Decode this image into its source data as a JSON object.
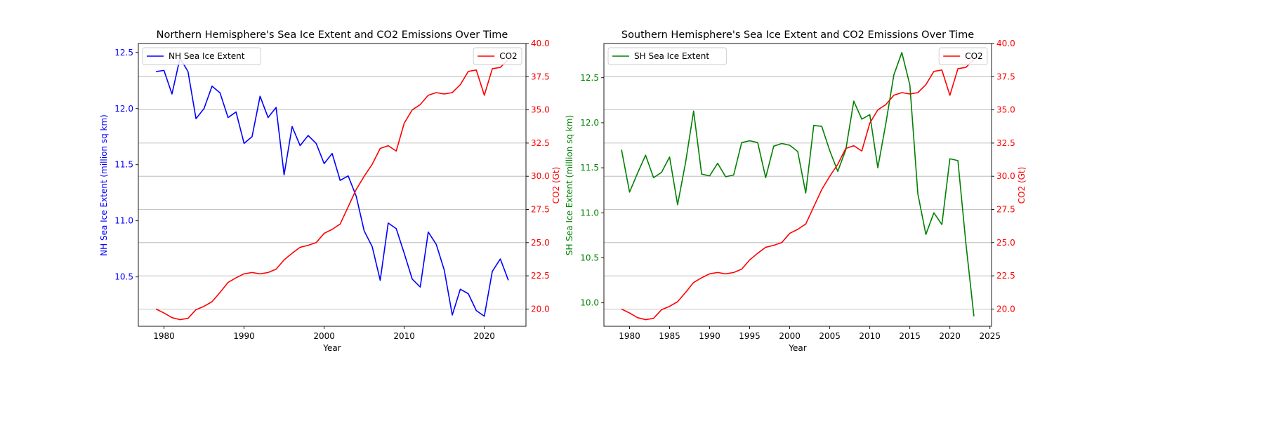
{
  "chart_data": [
    {
      "type": "line",
      "title": "Northern Hemisphere's Sea Ice Extent and CO2 Emissions Over Time",
      "xlabel": "Year",
      "ylabel_left": "NH Sea Ice Extent (million sq km)",
      "ylabel_right": "CO2 (Gt)",
      "xlim": [
        1976.8,
        2025.2
      ],
      "ylim_left": [
        10.06,
        12.58
      ],
      "ylim_right": [
        18.7,
        40.0
      ],
      "x_ticks": [
        1980,
        1990,
        2000,
        2010,
        2020
      ],
      "y_ticks_left": [
        10.5,
        11.0,
        11.5,
        12.0,
        12.5
      ],
      "y_ticks_right": [
        20.0,
        22.5,
        25.0,
        27.5,
        30.0,
        32.5,
        35.0,
        37.5,
        40.0
      ],
      "x_tick_labels": [
        "1980",
        "1990",
        "2000",
        "2010",
        "2020"
      ],
      "y_tick_labels_left": [
        "10.5",
        "11.0",
        "11.5",
        "12.0",
        "12.5"
      ],
      "y_tick_labels_right": [
        "20.0",
        "22.5",
        "25.0",
        "27.5",
        "30.0",
        "32.5",
        "35.0",
        "37.5",
        "40.0"
      ],
      "grid": "horizontal lines at right-axis ticks",
      "legend_left": {
        "position": "upper-left",
        "label": "NH Sea Ice Extent"
      },
      "legend_right": {
        "position": "upper-right",
        "label": "CO2"
      },
      "series": [
        {
          "name": "NH Sea Ice Extent",
          "axis": "left",
          "color": "#0000ff",
          "x": [
            1979,
            1980,
            1981,
            1982,
            1983,
            1984,
            1985,
            1986,
            1987,
            1988,
            1989,
            1990,
            1991,
            1992,
            1993,
            1994,
            1995,
            1996,
            1997,
            1998,
            1999,
            2000,
            2001,
            2002,
            2003,
            2004,
            2005,
            2006,
            2007,
            2008,
            2009,
            2010,
            2011,
            2012,
            2013,
            2014,
            2015,
            2016,
            2017,
            2018,
            2019,
            2020,
            2021,
            2022,
            2023
          ],
          "values": [
            12.33,
            12.34,
            12.13,
            12.45,
            12.33,
            11.91,
            12.0,
            12.2,
            12.14,
            11.92,
            11.97,
            11.69,
            11.75,
            12.11,
            11.92,
            12.01,
            11.41,
            11.84,
            11.67,
            11.76,
            11.69,
            11.51,
            11.6,
            11.36,
            11.4,
            11.22,
            10.91,
            10.77,
            10.47,
            10.98,
            10.93,
            10.71,
            10.48,
            10.41,
            10.9,
            10.79,
            10.56,
            10.16,
            10.39,
            10.35,
            10.2,
            10.15,
            10.55,
            10.66,
            10.47
          ]
        },
        {
          "name": "CO2",
          "axis": "right",
          "color": "#ff0000",
          "x": [
            1979,
            1980,
            1981,
            1982,
            1983,
            1984,
            1985,
            1986,
            1987,
            1988,
            1989,
            1990,
            1991,
            1992,
            1993,
            1994,
            1995,
            1996,
            1997,
            1998,
            1999,
            2000,
            2001,
            2002,
            2003,
            2004,
            2005,
            2006,
            2007,
            2008,
            2009,
            2010,
            2011,
            2012,
            2013,
            2014,
            2015,
            2016,
            2017,
            2018,
            2019,
            2020,
            2021,
            2022,
            2023
          ],
          "values": [
            20.0,
            19.7,
            19.35,
            19.2,
            19.3,
            19.95,
            20.2,
            20.55,
            21.25,
            22.0,
            22.35,
            22.65,
            22.75,
            22.65,
            22.75,
            23.0,
            23.7,
            24.2,
            24.65,
            24.8,
            25.0,
            25.7,
            26.0,
            26.4,
            27.7,
            29.0,
            30.0,
            30.9,
            32.1,
            32.3,
            31.9,
            34.0,
            35.0,
            35.4,
            36.1,
            36.3,
            36.2,
            36.3,
            36.9,
            37.9,
            38.0,
            36.1,
            38.1,
            38.2,
            38.8
          ]
        }
      ]
    },
    {
      "type": "line",
      "title": "Southern Hemisphere's Sea Ice Extent and CO2 Emissions Over Time",
      "xlabel": "Year",
      "ylabel_left": "SH Sea Ice Extent (million sq km)",
      "ylabel_right": "CO2 (Gt)",
      "xlim": [
        1976.8,
        2025.2
      ],
      "ylim_left": [
        9.74,
        12.88
      ],
      "ylim_right": [
        18.7,
        40.0
      ],
      "x_ticks": [
        1980,
        1985,
        1990,
        1995,
        2000,
        2005,
        2010,
        2015,
        2020,
        2025
      ],
      "y_ticks_left": [
        10.0,
        10.5,
        11.0,
        11.5,
        12.0,
        12.5
      ],
      "y_ticks_right": [
        20.0,
        22.5,
        25.0,
        27.5,
        30.0,
        32.5,
        35.0,
        37.5,
        40.0
      ],
      "x_tick_labels": [
        "1980",
        "1985",
        "1990",
        "1995",
        "2000",
        "2005",
        "2010",
        "2015",
        "2020",
        "2025"
      ],
      "y_tick_labels_left": [
        "10.0",
        "10.5",
        "11.0",
        "11.5",
        "12.0",
        "12.5"
      ],
      "y_tick_labels_right": [
        "20.0",
        "22.5",
        "25.0",
        "27.5",
        "30.0",
        "32.5",
        "35.0",
        "37.5",
        "40.0"
      ],
      "grid": "horizontal lines at right-axis ticks",
      "legend_left": {
        "position": "upper-left",
        "label": "SH Sea Ice Extent"
      },
      "legend_right": {
        "position": "upper-right",
        "label": "CO2"
      },
      "series": [
        {
          "name": "SH Sea Ice Extent",
          "axis": "left",
          "color": "#008000",
          "x": [
            1979,
            1980,
            1981,
            1982,
            1983,
            1984,
            1985,
            1986,
            1987,
            1988,
            1989,
            1990,
            1991,
            1992,
            1993,
            1994,
            1995,
            1996,
            1997,
            1998,
            1999,
            2000,
            2001,
            2002,
            2003,
            2004,
            2005,
            2006,
            2007,
            2008,
            2009,
            2010,
            2011,
            2012,
            2013,
            2014,
            2015,
            2016,
            2017,
            2018,
            2019,
            2020,
            2021,
            2022,
            2023
          ],
          "values": [
            11.7,
            11.23,
            11.44,
            11.64,
            11.39,
            11.45,
            11.62,
            11.09,
            11.56,
            12.13,
            11.43,
            11.41,
            11.55,
            11.4,
            11.42,
            11.78,
            11.8,
            11.78,
            11.39,
            11.74,
            11.77,
            11.75,
            11.68,
            11.22,
            11.97,
            11.96,
            11.69,
            11.46,
            11.7,
            12.24,
            12.04,
            12.09,
            11.5,
            11.99,
            12.53,
            12.78,
            12.42,
            11.21,
            10.76,
            11.0,
            10.87,
            11.6,
            11.58,
            10.66,
            9.85
          ]
        },
        {
          "name": "CO2",
          "axis": "right",
          "color": "#ff0000",
          "x": [
            1979,
            1980,
            1981,
            1982,
            1983,
            1984,
            1985,
            1986,
            1987,
            1988,
            1989,
            1990,
            1991,
            1992,
            1993,
            1994,
            1995,
            1996,
            1997,
            1998,
            1999,
            2000,
            2001,
            2002,
            2003,
            2004,
            2005,
            2006,
            2007,
            2008,
            2009,
            2010,
            2011,
            2012,
            2013,
            2014,
            2015,
            2016,
            2017,
            2018,
            2019,
            2020,
            2021,
            2022,
            2023
          ],
          "values": [
            20.0,
            19.7,
            19.35,
            19.2,
            19.3,
            19.95,
            20.2,
            20.55,
            21.25,
            22.0,
            22.35,
            22.65,
            22.75,
            22.65,
            22.75,
            23.0,
            23.7,
            24.2,
            24.65,
            24.8,
            25.0,
            25.7,
            26.0,
            26.4,
            27.7,
            29.0,
            30.0,
            30.9,
            32.1,
            32.3,
            31.9,
            34.0,
            35.0,
            35.4,
            36.1,
            36.3,
            36.2,
            36.3,
            36.9,
            37.9,
            38.0,
            36.1,
            38.1,
            38.2,
            38.8
          ]
        }
      ]
    }
  ]
}
